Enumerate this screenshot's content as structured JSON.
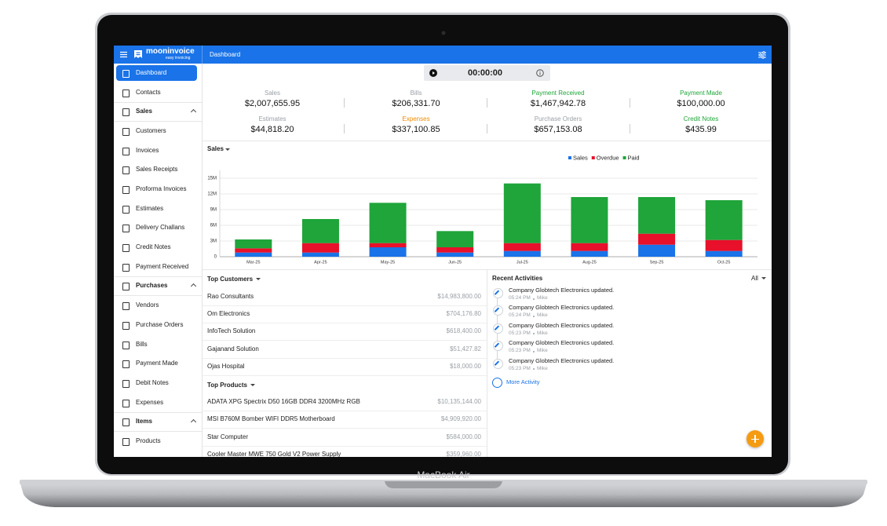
{
  "device_label": "MacBook Air",
  "app": {
    "brand": "mooninvoice",
    "tagline": "easy invoicing",
    "page_title": "Dashboard",
    "timer": "00:00:00"
  },
  "sidebar": {
    "top": [
      "Dashboard",
      "Contacts"
    ],
    "groups": [
      {
        "title": "Sales",
        "items": [
          "Customers",
          "Invoices",
          "Sales Receipts",
          "Proforma Invoices",
          "Estimates",
          "Delivery Challans",
          "Credit Notes",
          "Payment Received"
        ]
      },
      {
        "title": "Purchases",
        "items": [
          "Vendors",
          "Purchase Orders",
          "Bills",
          "Payment Made",
          "Debit Notes",
          "Expenses"
        ]
      },
      {
        "title": "Items",
        "items": [
          "Products"
        ]
      }
    ]
  },
  "stats": [
    {
      "label": "Sales",
      "value": "$2,007,655.95",
      "color": "#9aa0a6"
    },
    {
      "label": "Bills",
      "value": "$206,331.70",
      "color": "#9aa0a6"
    },
    {
      "label": "Payment Received",
      "value": "$1,467,942.78",
      "color": "#1fa53a"
    },
    {
      "label": "Payment Made",
      "value": "$100,000.00",
      "color": "#1fa53a"
    },
    {
      "label": "Estimates",
      "value": "$44,818.20",
      "color": "#9aa0a6"
    },
    {
      "label": "Expenses",
      "value": "$337,100.85",
      "color": "#f08c00"
    },
    {
      "label": "Purchase Orders",
      "value": "$657,153.08",
      "color": "#9aa0a6"
    },
    {
      "label": "Credit Notes",
      "value": "$435.99",
      "color": "#1fa53a"
    }
  ],
  "sales_chart": {
    "type": "bar",
    "stacked": true,
    "title": "Sales",
    "period": "Months",
    "categories": [
      "Mar-25",
      "Apr-25",
      "May-25",
      "Jun-25",
      "Jul-25",
      "Aug-25",
      "Sep-25",
      "Oct-25"
    ],
    "series": [
      {
        "name": "Sales",
        "color": "#1a73e8",
        "values": [
          800000,
          800000,
          1800000,
          800000,
          1100000,
          1100000,
          2300000,
          1100000
        ]
      },
      {
        "name": "Overdue",
        "color": "#e8102a",
        "values": [
          800000,
          1800000,
          800000,
          1000000,
          1500000,
          1500000,
          2100000,
          2100000
        ]
      },
      {
        "name": "Paid",
        "color": "#1fa53a",
        "values": [
          1700000,
          4600000,
          7700000,
          3100000,
          11400000,
          8800000,
          7000000,
          7600000
        ]
      }
    ],
    "ylim": [
      0,
      16500000
    ],
    "yticks": [
      0,
      {
        "value": 3000000,
        "label": "3M"
      },
      {
        "value": 6000000,
        "label": "6M"
      },
      {
        "value": 9000000,
        "label": "9M"
      },
      {
        "value": 12000000,
        "label": "12M"
      },
      {
        "value": 15000000,
        "label": "15M"
      }
    ],
    "grid": true
  },
  "top_customers": {
    "title": "Top Customers",
    "rows": [
      {
        "name": "Rao Consultants",
        "amount": "$14,983,800.00"
      },
      {
        "name": "Om Electronics",
        "amount": "$704,176.80"
      },
      {
        "name": "InfoTech Solution",
        "amount": "$618,400.00"
      },
      {
        "name": "Gajanand Solution",
        "amount": "$51,427.82"
      },
      {
        "name": "Ojas Hospital",
        "amount": "$18,000.00"
      }
    ]
  },
  "top_products": {
    "title": "Top Products",
    "rows": [
      {
        "name": "ADATA XPG Spectrix D50 16GB DDR4 3200MHz RGB",
        "amount": "$10,135,144.00"
      },
      {
        "name": "MSI B760M Bomber WIFI DDR5 Motherboard",
        "amount": "$4,909,920.00"
      },
      {
        "name": "Star Computer",
        "amount": "$584,000.00"
      },
      {
        "name": "Cooler Master MWE 750 Gold V2 Power Supply",
        "amount": "$359,960.00"
      }
    ]
  },
  "recent_activities": {
    "title": "Recent Activities",
    "filter": "All",
    "more": "More Activity",
    "items": [
      {
        "text": "Company Globtech Electronics updated.",
        "time": "05:24 PM",
        "user": "Mike"
      },
      {
        "text": "Company Globtech Electronics updated.",
        "time": "05:24 PM",
        "user": "Mike"
      },
      {
        "text": "Company Globtech Electronics updated.",
        "time": "05:23 PM",
        "user": "Mike"
      },
      {
        "text": "Company Globtech Electronics updated.",
        "time": "05:23 PM",
        "user": "Mike"
      },
      {
        "text": "Company Globtech Electronics updated.",
        "time": "05:23 PM",
        "user": "Mike"
      }
    ]
  }
}
